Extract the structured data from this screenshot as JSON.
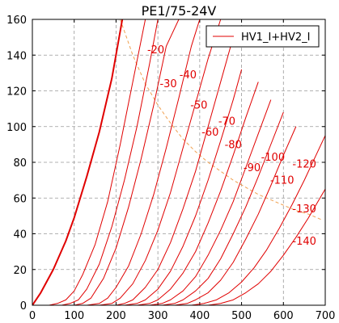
{
  "chart_data": {
    "type": "line",
    "title": "PE1/75-24V",
    "xlabel": "",
    "ylabel": "",
    "xlim": [
      0,
      700
    ],
    "ylim": [
      0,
      160
    ],
    "x_ticks": [
      0,
      100,
      200,
      300,
      400,
      500,
      600,
      700
    ],
    "y_ticks": [
      0,
      20,
      40,
      60,
      80,
      100,
      120,
      140,
      160
    ],
    "grid": true,
    "legend": {
      "entries": [
        "HV1_I+HV2_I"
      ],
      "placement": "top-right"
    },
    "colors": {
      "curves": "#e00000",
      "dissipation": "#f0a050",
      "grid": "#999999"
    },
    "series": [
      {
        "label": "",
        "x": [
          0,
          20,
          50,
          80,
          100,
          130,
          160,
          190,
          215
        ],
        "y": [
          0,
          7,
          20,
          36,
          49,
          72,
          97,
          127,
          160
        ]
      },
      {
        "label": "-20",
        "x": [
          0,
          40,
          60,
          80,
          100,
          120,
          150,
          180,
          210,
          240,
          270
        ],
        "y": [
          0,
          0,
          1,
          3,
          8,
          17,
          34,
          58,
          90,
          125,
          160
        ]
      },
      {
        "label": "-30",
        "x": [
          0,
          70,
          90,
          110,
          130,
          160,
          190,
          220,
          250,
          280,
          300
        ],
        "y": [
          0,
          0,
          1,
          3,
          9,
          23,
          44,
          70,
          100,
          135,
          160
        ]
      },
      {
        "label": "-40",
        "x": [
          0,
          100,
          120,
          140,
          170,
          200,
          230,
          260,
          290,
          320,
          350
        ],
        "y": [
          0,
          0,
          1,
          4,
          15,
          32,
          55,
          82,
          112,
          145,
          160
        ]
      },
      {
        "label": "-50",
        "x": [
          0,
          130,
          160,
          180,
          200,
          230,
          260,
          290,
          320,
          350,
          380,
          400
        ],
        "y": [
          0,
          0,
          1,
          4,
          10,
          22,
          40,
          62,
          88,
          116,
          145,
          160
        ]
      },
      {
        "label": "-60",
        "x": [
          0,
          160,
          190,
          210,
          240,
          270,
          300,
          330,
          360,
          390,
          420,
          450
        ],
        "y": [
          0,
          0,
          1,
          4,
          12,
          25,
          42,
          63,
          88,
          113,
          138,
          160
        ]
      },
      {
        "label": "-70",
        "x": [
          0,
          200,
          220,
          240,
          270,
          300,
          330,
          360,
          390,
          420,
          450,
          480
        ],
        "y": [
          0,
          0,
          1,
          3,
          10,
          20,
          35,
          54,
          75,
          100,
          125,
          150
        ]
      },
      {
        "label": "-80",
        "x": [
          0,
          220,
          250,
          270,
          300,
          330,
          360,
          390,
          420,
          450,
          480,
          500
        ],
        "y": [
          0,
          0,
          1,
          3,
          9,
          19,
          33,
          50,
          70,
          92,
          115,
          132
        ]
      },
      {
        "label": "-90",
        "x": [
          0,
          250,
          280,
          300,
          330,
          360,
          390,
          420,
          450,
          480,
          510,
          540
        ],
        "y": [
          0,
          0,
          1,
          3,
          9,
          18,
          30,
          46,
          64,
          84,
          105,
          125
        ]
      },
      {
        "label": "-100",
        "x": [
          0,
          280,
          310,
          330,
          360,
          390,
          420,
          450,
          480,
          510,
          540,
          570
        ],
        "y": [
          0,
          0,
          1,
          3,
          8,
          16,
          28,
          42,
          58,
          77,
          96,
          115
        ]
      },
      {
        "label": "-110",
        "x": [
          0,
          310,
          340,
          360,
          390,
          420,
          450,
          480,
          510,
          540,
          570,
          600
        ],
        "y": [
          0,
          0,
          1,
          3,
          8,
          15,
          26,
          40,
          55,
          72,
          90,
          108
        ]
      },
      {
        "label": "-120",
        "x": [
          0,
          340,
          370,
          390,
          420,
          450,
          480,
          510,
          540,
          570,
          600,
          630
        ],
        "y": [
          0,
          0,
          1,
          3,
          7,
          14,
          24,
          37,
          51,
          67,
          84,
          100
        ]
      },
      {
        "label": "-130",
        "x": [
          0,
          380,
          410,
          440,
          470,
          500,
          530,
          560,
          590,
          620,
          650,
          680,
          700
        ],
        "y": [
          0,
          0,
          1,
          3,
          7,
          13,
          21,
          31,
          43,
          56,
          70,
          85,
          95
        ]
      },
      {
        "label": "-140",
        "x": [
          0,
          420,
          450,
          480,
          510,
          540,
          570,
          600,
          630,
          660,
          690,
          700
        ],
        "y": [
          0,
          0,
          1,
          3,
          7,
          12,
          19,
          28,
          38,
          49,
          61,
          65
        ]
      }
    ],
    "dissipation_curve": {
      "x": [
        210,
        240,
        270,
        300,
        330,
        360,
        390,
        420,
        450,
        480,
        510,
        540,
        570,
        600,
        630,
        660,
        690
      ],
      "y": [
        160,
        140,
        124,
        112,
        102,
        93,
        86,
        80,
        75,
        70,
        66,
        62,
        59,
        56,
        53,
        51,
        48
      ]
    },
    "curve_labels": [
      {
        "text": "-20",
        "x": 295,
        "y": 141
      },
      {
        "text": "-30",
        "x": 325,
        "y": 122
      },
      {
        "text": "-40",
        "x": 372,
        "y": 127
      },
      {
        "text": "-50",
        "x": 398,
        "y": 110
      },
      {
        "text": "-60",
        "x": 425,
        "y": 95
      },
      {
        "text": "-70",
        "x": 465,
        "y": 101
      },
      {
        "text": "-80",
        "x": 480,
        "y": 88
      },
      {
        "text": "-90",
        "x": 525,
        "y": 75
      },
      {
        "text": "-100",
        "x": 575,
        "y": 81
      },
      {
        "text": "-110",
        "x": 597,
        "y": 68
      },
      {
        "text": "-120",
        "x": 650,
        "y": 77
      },
      {
        "text": "-130",
        "x": 650,
        "y": 52
      },
      {
        "text": "-140",
        "x": 650,
        "y": 34
      }
    ]
  }
}
